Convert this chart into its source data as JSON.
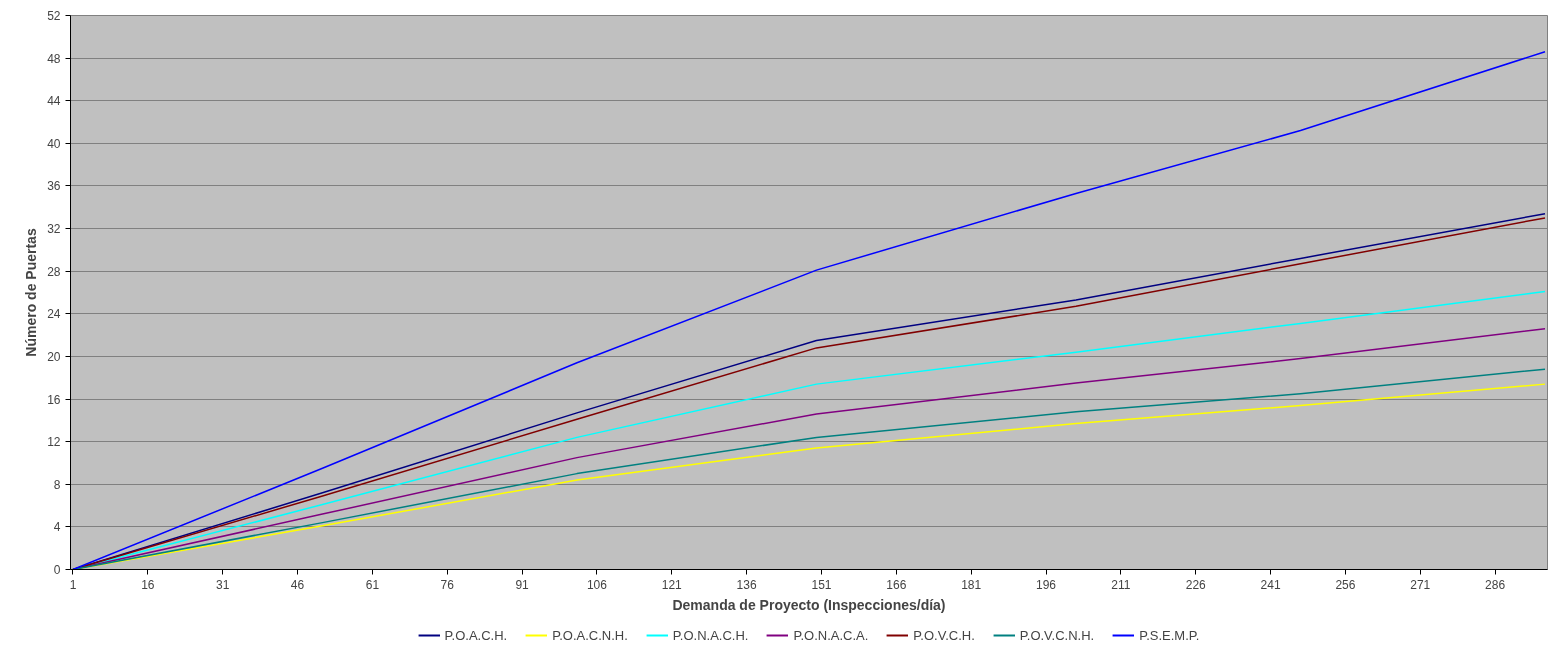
{
  "chart_data": {
    "type": "line",
    "xlabel": "Demanda de Proyecto (Inspecciones/día)",
    "ylabel": "Número de Puertas",
    "x": [
      1,
      51,
      102,
      150,
      202,
      247,
      296
    ],
    "series": [
      {
        "name": "P.O.A.C.H.",
        "color": "#000080",
        "values": [
          0,
          7.2,
          14.7,
          21.5,
          25.3,
          29.2,
          33.4
        ]
      },
      {
        "name": "P.O.A.C.N.H.",
        "color": "#ffff00",
        "values": [
          0,
          4.1,
          8.4,
          11.4,
          13.7,
          15.4,
          17.4
        ]
      },
      {
        "name": "P.O.N.A.C.H.",
        "color": "#00ffff",
        "values": [
          0,
          6.1,
          12.4,
          17.4,
          20.4,
          23.1,
          26.1
        ]
      },
      {
        "name": "P.O.N.A.C.A.",
        "color": "#800080",
        "values": [
          0,
          5.2,
          10.5,
          14.6,
          17.5,
          19.8,
          22.6
        ]
      },
      {
        "name": "P.O.V.C.H.",
        "color": "#800000",
        "values": [
          0,
          6.9,
          14.1,
          20.8,
          24.7,
          28.7,
          33.0
        ]
      },
      {
        "name": "P.O.V.C.N.H.",
        "color": "#008080",
        "values": [
          0,
          4.4,
          9.0,
          12.4,
          14.8,
          16.5,
          18.8
        ]
      },
      {
        "name": "P.S.E.M.P.",
        "color": "#0000ff",
        "values": [
          0,
          9.5,
          19.4,
          28.1,
          35.3,
          41.2,
          48.6
        ]
      }
    ],
    "xlim": [
      0.5,
      296.5
    ],
    "xticks": [
      1,
      16,
      31,
      46,
      61,
      76,
      91,
      106,
      121,
      136,
      151,
      166,
      181,
      196,
      211,
      226,
      241,
      256,
      271,
      286
    ],
    "ylim": [
      0,
      52
    ],
    "yticks": [
      0,
      4,
      8,
      12,
      16,
      20,
      24,
      28,
      32,
      36,
      40,
      44,
      48,
      52
    ],
    "grid": "y",
    "legend": "bottom",
    "marker": "none",
    "line_style": "solid"
  }
}
